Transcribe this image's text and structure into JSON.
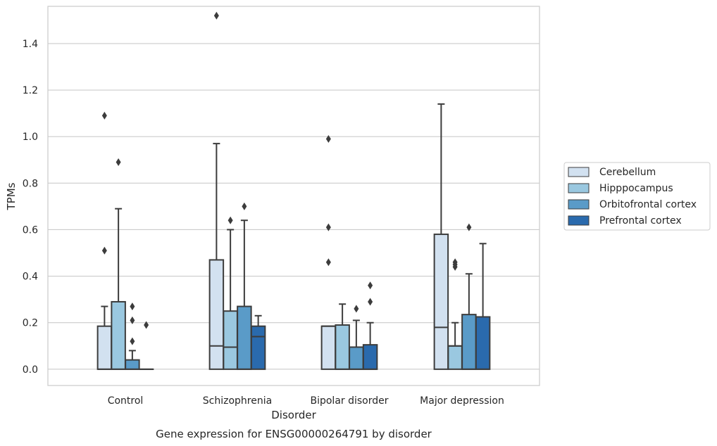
{
  "chart_data": {
    "type": "box",
    "title": "Gene expression for ENSG00000264791 by disorder",
    "xlabel": "Disorder",
    "ylabel": "TPMs",
    "ylim": [
      -0.07,
      1.56
    ],
    "yticks": [
      "0.0",
      "0.2",
      "0.4",
      "0.6",
      "0.8",
      "1.0",
      "1.2",
      "1.4"
    ],
    "grid": true,
    "legend_position": "right",
    "categories": [
      "Control",
      "Schizophrenia",
      "Bipolar disorder",
      "Major depression"
    ],
    "series": [
      {
        "name": "Cerebellum",
        "color": "#d2e1f0",
        "boxes": [
          {
            "q1": 0.0,
            "median": 0.0,
            "q3": 0.185,
            "whisker_low": 0.0,
            "whisker_high": 0.27,
            "outliers": [
              0.51,
              1.09
            ]
          },
          {
            "q1": 0.0,
            "median": 0.1,
            "q3": 0.47,
            "whisker_low": 0.0,
            "whisker_high": 0.97,
            "outliers": [
              1.52
            ]
          },
          {
            "q1": 0.0,
            "median": 0.185,
            "q3": 0.185,
            "whisker_low": 0.0,
            "whisker_high": 0.185,
            "outliers": [
              0.46,
              0.61,
              0.99
            ]
          },
          {
            "q1": 0.0,
            "median": 0.18,
            "q3": 0.58,
            "whisker_low": 0.0,
            "whisker_high": 1.14,
            "outliers": []
          }
        ]
      },
      {
        "name": "Hipppocampus",
        "color": "#9ac8e0",
        "boxes": [
          {
            "q1": 0.0,
            "median": 0.0,
            "q3": 0.29,
            "whisker_low": 0.0,
            "whisker_high": 0.69,
            "outliers": [
              0.89
            ]
          },
          {
            "q1": 0.0,
            "median": 0.095,
            "q3": 0.25,
            "whisker_low": 0.0,
            "whisker_high": 0.6,
            "outliers": [
              0.64
            ]
          },
          {
            "q1": 0.0,
            "median": 0.0,
            "q3": 0.19,
            "whisker_low": 0.0,
            "whisker_high": 0.28,
            "outliers": []
          },
          {
            "q1": 0.0,
            "median": 0.1,
            "q3": 0.1,
            "whisker_low": 0.0,
            "whisker_high": 0.2,
            "outliers": [
              0.44,
              0.45,
              0.46
            ]
          }
        ]
      },
      {
        "name": "Orbitofrontal cortex",
        "color": "#5a9bc8",
        "boxes": [
          {
            "q1": 0.0,
            "median": 0.0,
            "q3": 0.04,
            "whisker_low": 0.0,
            "whisker_high": 0.08,
            "outliers": [
              0.12,
              0.21,
              0.27
            ]
          },
          {
            "q1": 0.0,
            "median": 0.0,
            "q3": 0.27,
            "whisker_low": 0.0,
            "whisker_high": 0.64,
            "outliers": [
              0.7
            ]
          },
          {
            "q1": 0.0,
            "median": 0.0,
            "q3": 0.095,
            "whisker_low": 0.0,
            "whisker_high": 0.21,
            "outliers": [
              0.26
            ]
          },
          {
            "q1": 0.0,
            "median": 0.0,
            "q3": 0.235,
            "whisker_low": 0.0,
            "whisker_high": 0.41,
            "outliers": [
              0.61
            ]
          }
        ]
      },
      {
        "name": "Prefrontal cortex",
        "color": "#2a6aad",
        "boxes": [
          {
            "q1": 0.0,
            "median": 0.0,
            "q3": 0.0,
            "whisker_low": 0.0,
            "whisker_high": 0.0,
            "outliers": [
              0.19
            ]
          },
          {
            "q1": 0.0,
            "median": 0.14,
            "q3": 0.185,
            "whisker_low": 0.0,
            "whisker_high": 0.23,
            "outliers": []
          },
          {
            "q1": 0.0,
            "median": 0.0,
            "q3": 0.105,
            "whisker_low": 0.0,
            "whisker_high": 0.2,
            "outliers": [
              0.29,
              0.36
            ]
          },
          {
            "q1": 0.0,
            "median": 0.0,
            "q3": 0.225,
            "whisker_low": 0.0,
            "whisker_high": 0.54,
            "outliers": []
          }
        ]
      }
    ]
  }
}
